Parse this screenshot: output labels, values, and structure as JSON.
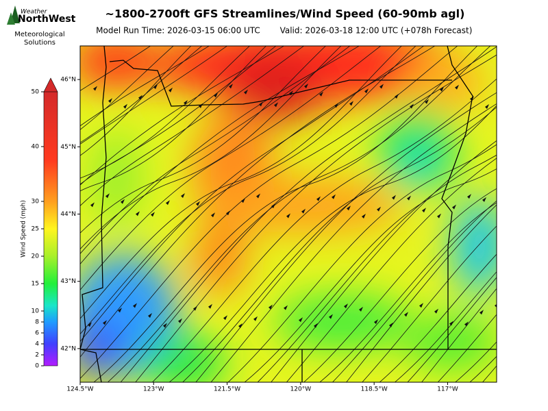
{
  "header": {
    "title": "~1800-2700ft GFS Streamlines/Wind Speed (60-90mb agl)",
    "run_time": "Model Run Time: 2026-03-15 06:00 UTC",
    "valid_time": "Valid: 2026-03-18 12:00 UTC  (+078h Forecast)"
  },
  "logo": {
    "top": "Weather",
    "brand": "NorthWest",
    "line1": "Meteorological",
    "line2": "Solutions"
  },
  "map": {
    "xlim": [
      -124.5,
      -116
    ],
    "ylim": [
      41.5,
      46.5
    ],
    "xticks": [
      {
        "value": -124.5,
        "label": "124.5°W"
      },
      {
        "value": -123,
        "label": "123°W"
      },
      {
        "value": -121.5,
        "label": "121.5°W"
      },
      {
        "value": -120,
        "label": "120°W"
      },
      {
        "value": -118.5,
        "label": "118.5°W"
      },
      {
        "value": -117,
        "label": "117°W"
      }
    ],
    "yticks": [
      {
        "value": 42,
        "label": "42°N"
      },
      {
        "value": 43,
        "label": "43°N"
      },
      {
        "value": 44,
        "label": "44°N"
      },
      {
        "value": 45,
        "label": "45°N"
      },
      {
        "value": 46,
        "label": "46°N"
      }
    ]
  },
  "colorbar": {
    "label": "Wind Speed (mph)",
    "lim": [
      0,
      50
    ],
    "ticks": [
      0,
      2,
      4,
      6,
      8,
      10,
      15,
      20,
      25,
      30,
      40,
      50
    ]
  }
}
